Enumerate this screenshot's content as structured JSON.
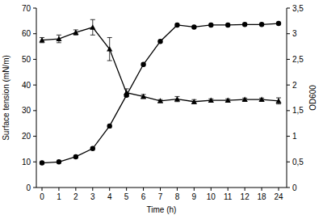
{
  "chart_data": {
    "type": "line",
    "x_label": "Time (h)",
    "y_label": "Surface tension (mN/m)",
    "y2_label": "OD600",
    "categories": [
      "0",
      "1",
      "2",
      "3",
      "4",
      "5",
      "6",
      "7",
      "8",
      "9",
      "10",
      "11",
      "12",
      "18",
      "24"
    ],
    "ylim": [
      0,
      70
    ],
    "yticks": [
      0,
      10,
      20,
      30,
      40,
      50,
      60,
      70
    ],
    "y2lim": [
      0,
      3.5
    ],
    "y2ticks": [
      0,
      {
        "value": 0.5,
        "label": "0,5"
      },
      1,
      {
        "value": 1.5,
        "label": "1,5"
      },
      2,
      {
        "value": 2.5,
        "label": "2,5"
      },
      3,
      {
        "value": 3.5,
        "label": "3,5"
      }
    ],
    "grid": false,
    "series": [
      {
        "color": "#000000",
        "marker": "triangle",
        "values": [
          57.5,
          58,
          60.5,
          62.5,
          54,
          37,
          35.5,
          33.8,
          34.5,
          33.5,
          34,
          34,
          34.3,
          34.3,
          33.8
        ],
        "errors": [
          1,
          1.5,
          1,
          3,
          4.5,
          1.5,
          0.8,
          0.5,
          1,
          0.8,
          0.6,
          0.6,
          0.6,
          0.6,
          1.2
        ]
      },
      {
        "color": "#000000",
        "marker": "circle",
        "axis": "y2",
        "values": [
          0.48,
          0.5,
          0.6,
          0.76,
          1.2,
          1.8,
          2.4,
          2.85,
          3.17,
          3.13,
          3.17,
          3.17,
          3.18,
          3.18,
          3.2
        ]
      }
    ]
  }
}
